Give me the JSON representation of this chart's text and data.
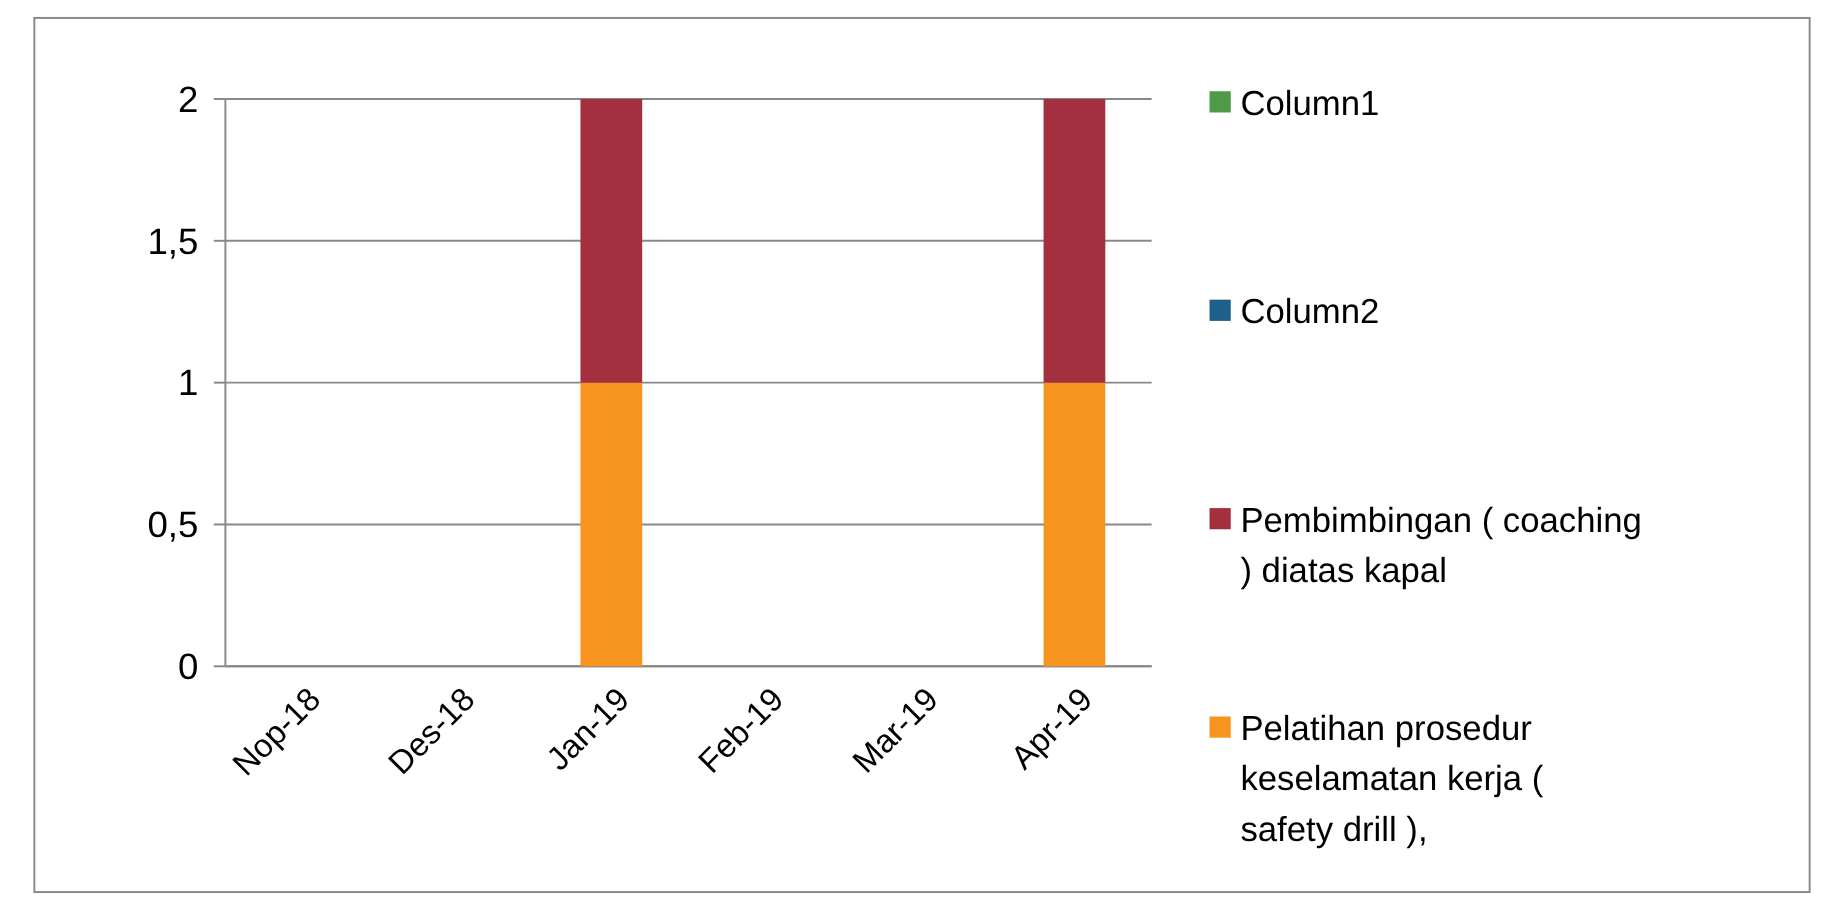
{
  "chart_data": {
    "type": "bar",
    "stacked": true,
    "categories": [
      "Nop-18",
      "Des-18",
      "Jan-19",
      "Feb-19",
      "Mar-19",
      "Apr-19"
    ],
    "series": [
      {
        "name": "Pelatihan prosedur keselamatan kerja ( safety drill ),",
        "color": "#f79420",
        "values": [
          0,
          0,
          1,
          0,
          0,
          1
        ]
      },
      {
        "name": "Pembimbingan ( coaching ) diatas kapal",
        "color": "#a4303f",
        "values": [
          0,
          0,
          1,
          0,
          0,
          1
        ]
      },
      {
        "name": "Column2",
        "color": "#1f5f8b",
        "values": [
          0,
          0,
          0,
          0,
          0,
          0
        ]
      },
      {
        "name": "Column1",
        "color": "#4f9a47",
        "values": [
          0,
          0,
          0,
          0,
          0,
          0
        ]
      }
    ],
    "ylim": [
      0,
      2
    ],
    "yticks": [
      0,
      {
        "value": 0.5,
        "label": "0,5"
      },
      1,
      {
        "value": 1.5,
        "label": "1,5"
      },
      2
    ],
    "grid": "y",
    "legend": "right"
  }
}
